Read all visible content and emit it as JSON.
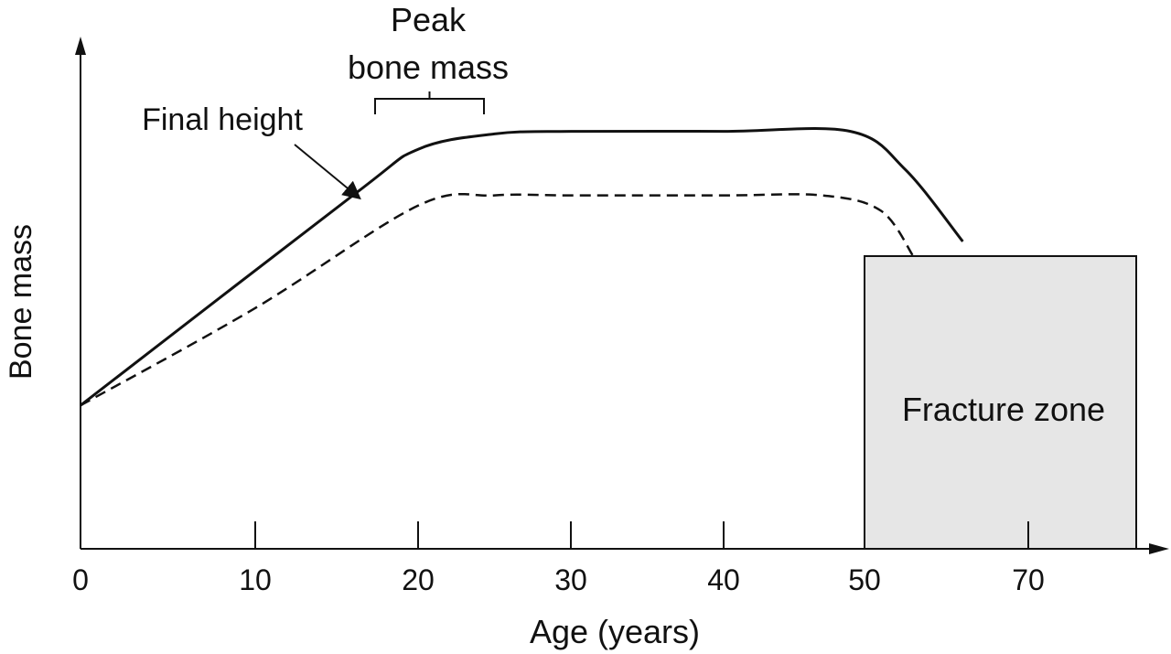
{
  "chart_data": {
    "type": "line",
    "xlabel": "Age (years)",
    "ylabel": "Bone mass",
    "x_ticks": [
      "0",
      "10",
      "20",
      "30",
      "40",
      "50",
      "70"
    ],
    "grid": false,
    "series": [
      {
        "style": "solid",
        "x": [
          0,
          16,
          20,
          25,
          30,
          40,
          49,
          55,
          62
        ],
        "y": [
          0.28,
          0.69,
          0.78,
          0.81,
          0.815,
          0.815,
          0.815,
          0.74,
          0.6
        ]
      },
      {
        "style": "dashed",
        "x": [
          0,
          10,
          20,
          25,
          30,
          40,
          47,
          52,
          56
        ],
        "y": [
          0.28,
          0.47,
          0.67,
          0.69,
          0.69,
          0.69,
          0.69,
          0.66,
          0.57
        ]
      }
    ],
    "annotations": [
      {
        "text": "Final height",
        "points_to_x": 16
      },
      {
        "text_line1": "Peak",
        "text_line2": "bone mass",
        "range_x": [
          18,
          24
        ]
      }
    ],
    "region": {
      "label": "Fracture zone",
      "x_from": 50
    }
  }
}
